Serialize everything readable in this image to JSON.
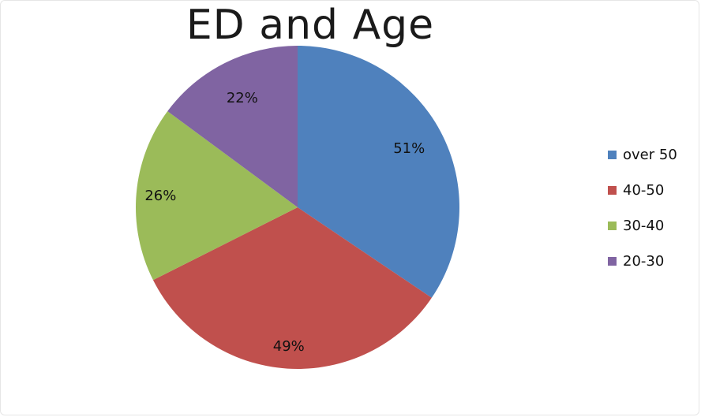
{
  "chart_data": {
    "type": "pie",
    "title": "ED and Age",
    "categories": [
      "over 50",
      "40-50",
      "30-40",
      "20-30"
    ],
    "values": [
      51,
      49,
      26,
      22
    ],
    "labels": [
      "51%",
      "49%",
      "26%",
      "22%"
    ],
    "colors": [
      "#4f81bd",
      "#c0504d",
      "#9bbb59",
      "#8064a2"
    ],
    "start_angle": "12 o'clock",
    "direction": "clockwise",
    "legend_position": "right"
  }
}
